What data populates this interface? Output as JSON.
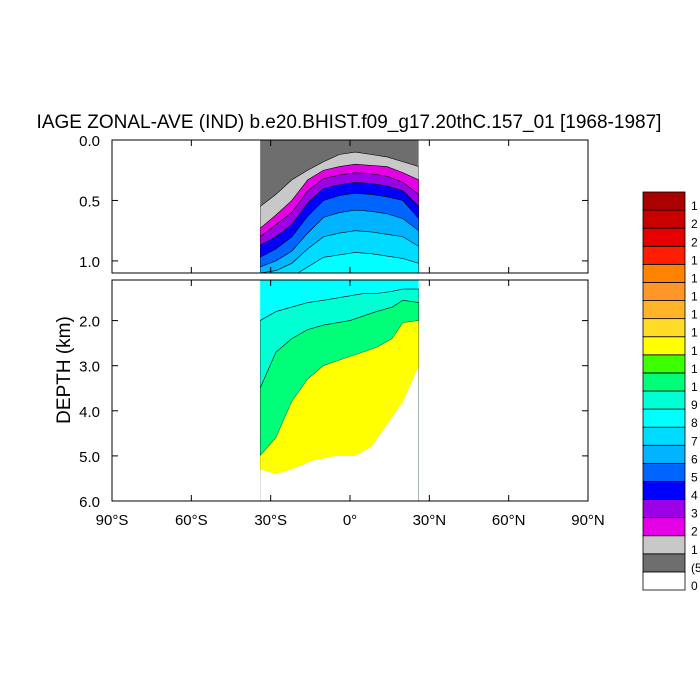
{
  "chart_data": {
    "type": "heatmap",
    "title": "IAGE ZONAL-AVE (IND) b.e20.BHIST.f09_g17.20thC.157_01 [1968-1987]",
    "ylabel": "DEPTH (km)",
    "xlabel": "",
    "x_ticks": [
      "90°S",
      "60°S",
      "30°S",
      "0°",
      "30°N",
      "60°N",
      "90°N"
    ],
    "x_tick_values": [
      -90,
      -60,
      -30,
      0,
      30,
      60,
      90
    ],
    "xlim": [
      -90,
      90
    ],
    "upper_panel": {
      "ylim": [
        0,
        1.1
      ],
      "y_ticks": [
        "0.0",
        "0.5",
        "1.0"
      ],
      "y_tick_values": [
        0,
        0.5,
        1.0
      ]
    },
    "lower_panel": {
      "ylim": [
        1.1,
        6.0
      ],
      "y_ticks": [
        "2.0",
        "3.0",
        "4.0",
        "5.0",
        "6.0"
      ],
      "y_tick_values": [
        2,
        3,
        4,
        5,
        6
      ]
    },
    "data_extent": {
      "lat_min": -34,
      "lat_max": 26
    },
    "colorbar_colors": [
      "#ffffff",
      "#6e6e6e",
      "#c8c8c8",
      "#e600e6",
      "#9b00e6",
      "#0000ff",
      "#0064ff",
      "#00b4ff",
      "#00dcff",
      "#00ffff",
      "#00ffd2",
      "#00ff78",
      "#3cff00",
      "#ffff00",
      "#ffdc28",
      "#ffb428",
      "#ff9628",
      "#ff8200",
      "#ff1e00",
      "#e60000",
      "#c80000",
      "#aa0000"
    ],
    "colorbar_labels_partial": [
      "0",
      "(5",
      "1",
      "2",
      "3",
      "4",
      "5",
      "6",
      "7",
      "8",
      "9",
      "1",
      "1",
      "1",
      "1",
      "1",
      "1",
      "1",
      "1",
      "2",
      "2",
      "1"
    ],
    "field": {
      "upper_profiles": [
        {
          "color": "#6e6e6e",
          "surface": true
        },
        {
          "color": "#c8c8c8",
          "depths": [
            0.55,
            0.45,
            0.33,
            0.25,
            0.18,
            0.12,
            0.1,
            0.12,
            0.14,
            0.18,
            0.22
          ]
        },
        {
          "color": "#e600e6",
          "depths": [
            0.73,
            0.62,
            0.5,
            0.33,
            0.25,
            0.22,
            0.2,
            0.21,
            0.22,
            0.27,
            0.33
          ]
        },
        {
          "color": "#9b00e6",
          "depths": [
            0.8,
            0.7,
            0.6,
            0.42,
            0.32,
            0.29,
            0.27,
            0.28,
            0.3,
            0.35,
            0.45
          ]
        },
        {
          "color": "#0000ff",
          "depths": [
            0.87,
            0.8,
            0.7,
            0.52,
            0.4,
            0.37,
            0.35,
            0.36,
            0.38,
            0.42,
            0.55
          ]
        },
        {
          "color": "#0064ff",
          "depths": [
            0.97,
            0.9,
            0.8,
            0.63,
            0.5,
            0.46,
            0.44,
            0.45,
            0.47,
            0.5,
            0.65
          ]
        },
        {
          "color": "#00b4ff",
          "depths": [
            1.05,
            1.0,
            0.92,
            0.77,
            0.64,
            0.6,
            0.58,
            0.59,
            0.61,
            0.65,
            0.75
          ]
        },
        {
          "color": "#00dcff",
          "depths": [
            1.1,
            1.08,
            1.02,
            0.9,
            0.8,
            0.77,
            0.75,
            0.76,
            0.78,
            0.8,
            0.88
          ]
        },
        {
          "color": "#00ffff",
          "depths": [
            1.15,
            1.15,
            1.13,
            1.05,
            0.97,
            0.95,
            0.93,
            0.94,
            0.96,
            0.98,
            1.02
          ]
        }
      ],
      "upper_lats": [
        -34,
        -28,
        -22,
        -16,
        -10,
        -4,
        2,
        8,
        14,
        20,
        26
      ],
      "lower_profiles": [
        {
          "color": "#00ffd2",
          "lats": [
            -34,
            -28,
            -22,
            -16,
            -10,
            -5,
            0,
            5,
            10,
            16,
            20,
            26
          ],
          "depths": [
            2.0,
            1.8,
            1.7,
            1.6,
            1.55,
            1.5,
            1.45,
            1.4,
            1.4,
            1.35,
            1.3,
            1.3
          ]
        },
        {
          "color": "#00ff78",
          "lats": [
            -34,
            -28,
            -22,
            -16,
            -10,
            -5,
            0,
            5,
            10,
            16,
            20,
            26
          ],
          "depths": [
            3.5,
            2.7,
            2.4,
            2.2,
            2.1,
            2.05,
            2.0,
            1.9,
            1.8,
            1.7,
            1.55,
            1.6
          ]
        },
        {
          "color": "#3cff00",
          "lats": [
            -34,
            -28,
            -22,
            -16,
            -10,
            -5,
            0,
            5,
            10,
            16,
            20,
            26
          ],
          "depths": [
            5.0,
            4.6,
            3.8,
            3.3,
            3.0,
            2.9,
            2.8,
            2.7,
            2.6,
            2.4,
            2.05,
            2.0
          ]
        },
        {
          "color": "#ffff00",
          "bottom": true
        }
      ]
    }
  }
}
